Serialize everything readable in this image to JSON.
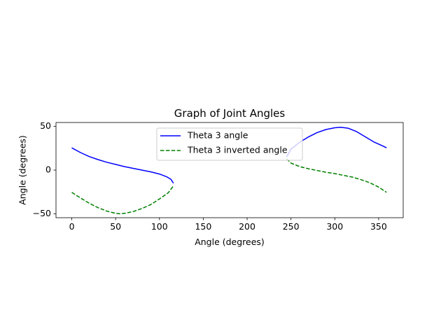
{
  "chart_data": {
    "type": "line",
    "title": "Graph of Joint Angles",
    "xlabel": "Angle (degrees)",
    "ylabel": "Angle (degrees)",
    "xlim": [
      -18,
      378
    ],
    "ylim": [
      -54.5,
      54.5
    ],
    "xticks": [
      0,
      50,
      100,
      150,
      200,
      250,
      300,
      350
    ],
    "yticks": [
      -50,
      0,
      50
    ],
    "grid": false,
    "legend_location": "top-center",
    "series": [
      {
        "name": "Theta 3 angle",
        "color": "#0000ff",
        "style": "solid",
        "segments": [
          [
            [
              0,
              25.5
            ],
            [
              10,
              20
            ],
            [
              20,
              15.5
            ],
            [
              30,
              12
            ],
            [
              40,
              9
            ],
            [
              50,
              6.5
            ],
            [
              60,
              4
            ],
            [
              70,
              2
            ],
            [
              80,
              0
            ],
            [
              90,
              -2
            ],
            [
              100,
              -4.5
            ],
            [
              108,
              -7.5
            ],
            [
              113,
              -10.5
            ],
            [
              116,
              -15
            ]
          ],
          [
            [
              245,
              15
            ],
            [
              250,
              24
            ],
            [
              260,
              32
            ],
            [
              270,
              38
            ],
            [
              280,
              43
            ],
            [
              290,
              46.5
            ],
            [
              300,
              48.5
            ],
            [
              307,
              49
            ],
            [
              315,
              48
            ],
            [
              325,
              44
            ],
            [
              335,
              38
            ],
            [
              345,
              32
            ],
            [
              355,
              27.5
            ],
            [
              359,
              25.5
            ]
          ]
        ]
      },
      {
        "name": "Theta 3 inverted angle",
        "color": "#008000",
        "style": "dashed",
        "segments": [
          [
            [
              0,
              -25.5
            ],
            [
              10,
              -32
            ],
            [
              20,
              -38
            ],
            [
              30,
              -43
            ],
            [
              40,
              -47
            ],
            [
              50,
              -49.5
            ],
            [
              55,
              -50
            ],
            [
              60,
              -49.5
            ],
            [
              70,
              -47.5
            ],
            [
              80,
              -44
            ],
            [
              90,
              -39.5
            ],
            [
              100,
              -33
            ],
            [
              110,
              -26
            ],
            [
              116,
              -18
            ]
          ],
          [
            [
              245,
              13
            ],
            [
              250,
              8
            ],
            [
              260,
              4
            ],
            [
              270,
              1.5
            ],
            [
              280,
              -0.5
            ],
            [
              290,
              -2.5
            ],
            [
              300,
              -4
            ],
            [
              310,
              -6
            ],
            [
              320,
              -8
            ],
            [
              330,
              -11
            ],
            [
              340,
              -14.5
            ],
            [
              350,
              -19.5
            ],
            [
              359,
              -25.5
            ]
          ]
        ]
      }
    ]
  }
}
